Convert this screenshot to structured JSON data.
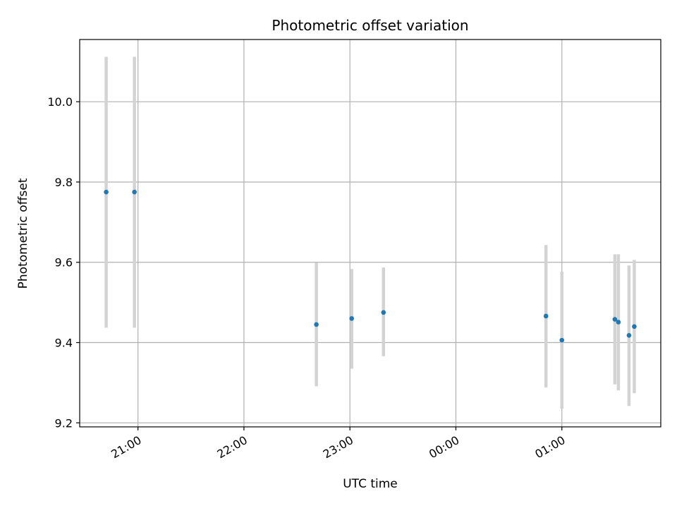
{
  "chart_data": {
    "type": "scatter",
    "title": "Photometric offset variation",
    "xlabel": "UTC time",
    "ylabel": "Photometric offset",
    "x_unit": "UTC time (hours, continuing past midnight)",
    "xlim": [
      "20:27",
      "01:56"
    ],
    "ylim": [
      9.19,
      10.155
    ],
    "x_ticks": [
      "21:00",
      "22:00",
      "23:00",
      "00:00",
      "01:00"
    ],
    "y_ticks": [
      "9.2",
      "9.4",
      "9.6",
      "9.8",
      "10.0"
    ],
    "grid": true,
    "marker_color": "#1f77b4",
    "errorbar_color": "#d3d3d3",
    "points": [
      {
        "time": "20:42",
        "y": 9.775,
        "err_low": 9.437,
        "err_high": 10.112
      },
      {
        "time": "20:58",
        "y": 9.775,
        "err_low": 9.437,
        "err_high": 10.112
      },
      {
        "time": "22:41",
        "y": 9.445,
        "err_low": 9.291,
        "err_high": 9.599
      },
      {
        "time": "23:01",
        "y": 9.46,
        "err_low": 9.335,
        "err_high": 9.583
      },
      {
        "time": "23:19",
        "y": 9.475,
        "err_low": 9.366,
        "err_high": 9.587
      },
      {
        "time": "00:51",
        "y": 9.466,
        "err_low": 9.288,
        "err_high": 9.643
      },
      {
        "time": "01:00",
        "y": 9.406,
        "err_low": 9.235,
        "err_high": 9.577
      },
      {
        "time": "01:30",
        "y": 9.458,
        "err_low": 9.296,
        "err_high": 9.62
      },
      {
        "time": "01:32",
        "y": 9.451,
        "err_low": 9.281,
        "err_high": 9.62
      },
      {
        "time": "01:38",
        "y": 9.418,
        "err_low": 9.242,
        "err_high": 9.592
      },
      {
        "time": "01:41",
        "y": 9.44,
        "err_low": 9.274,
        "err_high": 9.606
      }
    ]
  }
}
